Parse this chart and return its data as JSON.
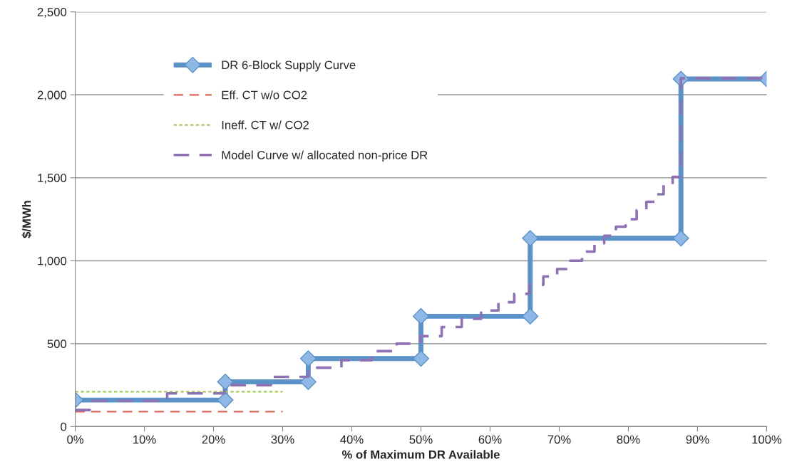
{
  "chart_data": {
    "type": "line",
    "xlabel": "% of Maximum DR Available",
    "ylabel": "$/MWh",
    "xlim": [
      0,
      100
    ],
    "xticks": [
      {
        "value": 0,
        "label": "0%"
      },
      {
        "value": 10,
        "label": "10%"
      },
      {
        "value": 20,
        "label": "20%"
      },
      {
        "value": 30,
        "label": "30%"
      },
      {
        "value": 40,
        "label": "40%"
      },
      {
        "value": 50,
        "label": "50%"
      },
      {
        "value": 60,
        "label": "60%"
      },
      {
        "value": 70,
        "label": "70%"
      },
      {
        "value": 80,
        "label": "80%"
      },
      {
        "value": 90,
        "label": "90%"
      },
      {
        "value": 100,
        "label": "100%"
      }
    ],
    "ylim": [
      0,
      2500
    ],
    "yticks": [
      0,
      {
        "value": 500,
        "label": "500"
      },
      {
        "value": 1000,
        "label": "1,000"
      },
      {
        "value": 1500,
        "label": "1,500"
      },
      {
        "value": 2000,
        "label": "2,000"
      },
      {
        "value": 2500,
        "label": "2,500"
      }
    ],
    "grid": "y",
    "legend": "top left",
    "series": [
      {
        "name": "DR 6-Block Supply Curve",
        "color": "#5b93c8",
        "marker": "diamond",
        "line_style": "solid",
        "x": [
          0,
          21.7,
          21.7,
          33.7,
          33.7,
          50,
          50,
          65.8,
          65.8,
          87.6,
          87.6,
          100
        ],
        "values": [
          160,
          160,
          270,
          270,
          410,
          410,
          665,
          665,
          1135,
          1135,
          2095,
          2095
        ]
      },
      {
        "name": "Eff. CT w/o CO2",
        "color": "#d9685a",
        "line_style": "dashed",
        "x": [
          0,
          30
        ],
        "values": [
          90,
          90
        ]
      },
      {
        "name": "Ineff. CT w/ CO2",
        "color": "#a5c85a",
        "line_style": "dotted",
        "x": [
          0,
          30
        ],
        "values": [
          210,
          210
        ]
      },
      {
        "name": "Model Curve w/ allocated non-price DR",
        "type": "step",
        "color": "#8f72b3",
        "line_style": "dashed",
        "x": [
          0,
          2.1,
          13.3,
          21.6,
          28.3,
          33.7,
          38.5,
          42.9,
          46.5,
          49.9,
          53.0,
          55.9,
          58.7,
          61.2,
          63.5,
          65.7,
          67.7,
          69.7,
          71.6,
          73.3,
          75.1,
          76.5,
          78.2,
          79.6,
          81.2,
          82.6,
          83.9,
          85.1,
          86.4,
          87.6,
          100
        ],
        "values": [
          100,
          155,
          200,
          250,
          300,
          355,
          400,
          455,
          500,
          545,
          600,
          650,
          700,
          750,
          800,
          855,
          905,
          950,
          1000,
          1055,
          1105,
          1150,
          1205,
          1250,
          1305,
          1355,
          1400,
          1455,
          1505,
          2100,
          2100
        ]
      }
    ]
  }
}
